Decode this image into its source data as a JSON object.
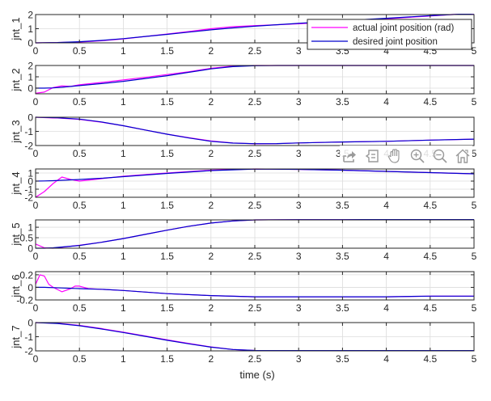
{
  "figure": {
    "xlabel": "time (s)",
    "legend": {
      "entries": [
        {
          "label": "actual joint position (rad)",
          "color": "#FF00FF"
        },
        {
          "label": "desired joint position",
          "color": "#0000CC"
        }
      ]
    },
    "toolbar": [
      {
        "name": "export-icon",
        "title": "Export"
      },
      {
        "name": "data-tips-icon",
        "title": "Data Tips"
      },
      {
        "name": "pan-icon",
        "title": "Pan"
      },
      {
        "name": "zoom-in-icon",
        "title": "Zoom In"
      },
      {
        "name": "zoom-out-icon",
        "title": "Zoom Out"
      },
      {
        "name": "home-icon",
        "title": "Restore View"
      }
    ]
  },
  "chart_data": [
    {
      "type": "line",
      "ylabel": "jnt_1",
      "xlabel": "",
      "xlim": [
        0,
        5
      ],
      "ylim": [
        0,
        2
      ],
      "yticks": [
        0,
        1,
        2
      ],
      "xticks": [
        0,
        0.5,
        1,
        1.5,
        2,
        2.5,
        3,
        3.5,
        4,
        4.5,
        5
      ],
      "grid": true,
      "legend_position": "northeast",
      "x": [
        0,
        0.25,
        0.5,
        0.75,
        1,
        1.25,
        1.5,
        1.75,
        2,
        2.25,
        2.5,
        2.75,
        3,
        3.25,
        3.5,
        3.75,
        4,
        4.25,
        4.5,
        4.75,
        5
      ],
      "series": [
        {
          "name": "actual joint position (rad)",
          "values": [
            0,
            0.02,
            0.06,
            0.15,
            0.28,
            0.45,
            0.62,
            0.8,
            1.0,
            1.14,
            1.22,
            1.28,
            1.35,
            1.42,
            1.52,
            1.6,
            1.7,
            1.8,
            1.9,
            2.0,
            2.08
          ]
        },
        {
          "name": "desired joint position",
          "values": [
            0,
            0.02,
            0.08,
            0.17,
            0.3,
            0.45,
            0.6,
            0.76,
            0.92,
            1.06,
            1.18,
            1.28,
            1.38,
            1.47,
            1.56,
            1.65,
            1.74,
            1.83,
            1.92,
            2.0,
            2.08
          ]
        }
      ]
    },
    {
      "type": "line",
      "ylabel": "jnt_2",
      "xlabel": "",
      "xlim": [
        0,
        5
      ],
      "ylim": [
        -0.5,
        2
      ],
      "yticks": [
        0,
        1,
        2
      ],
      "xticks": [
        0,
        0.5,
        1,
        1.5,
        2,
        2.5,
        3,
        3.5,
        4,
        4.5,
        5
      ],
      "grid": true,
      "x": [
        0,
        0.1,
        0.2,
        0.3,
        0.4,
        0.5,
        0.75,
        1,
        1.25,
        1.5,
        1.75,
        2,
        2.25,
        2.5,
        2.75,
        3,
        3.5,
        4,
        4.5,
        5
      ],
      "series": [
        {
          "name": "actual joint position (rad)",
          "values": [
            -0.45,
            -0.35,
            0.05,
            0.2,
            0.15,
            0.3,
            0.5,
            0.72,
            0.95,
            1.2,
            1.45,
            1.75,
            1.95,
            2.0,
            2.0,
            2.0,
            2.0,
            2.0,
            2.0,
            2.0
          ]
        },
        {
          "name": "desired joint position",
          "values": [
            0,
            0.0,
            0.02,
            0.08,
            0.15,
            0.22,
            0.4,
            0.6,
            0.85,
            1.1,
            1.4,
            1.7,
            1.9,
            1.98,
            2.0,
            2.0,
            2.0,
            2.0,
            2.0,
            2.0
          ]
        }
      ]
    },
    {
      "type": "line",
      "ylabel": "jnt_3",
      "xlabel": "",
      "xlim": [
        0,
        5
      ],
      "ylim": [
        -2,
        0
      ],
      "yticks": [
        -2,
        -1,
        0
      ],
      "xticks": [
        0,
        0.5,
        1,
        1.5,
        2,
        2.5,
        3,
        3.5,
        4,
        4.5,
        5
      ],
      "grid": true,
      "x": [
        0,
        0.2,
        0.25,
        0.5,
        0.75,
        1,
        1.25,
        1.5,
        1.75,
        2,
        2.25,
        2.5,
        2.75,
        3,
        3.25,
        3.5,
        4,
        4.5,
        5
      ],
      "series": [
        {
          "name": "actual joint position (rad)",
          "values": [
            0,
            -0.05,
            -0.05,
            -0.15,
            -0.35,
            -0.6,
            -0.9,
            -1.2,
            -1.45,
            -1.68,
            -1.82,
            -1.88,
            -1.87,
            -1.82,
            -1.78,
            -1.75,
            -1.7,
            -1.62,
            -1.55
          ]
        },
        {
          "name": "desired joint position",
          "values": [
            0,
            -0.03,
            -0.04,
            -0.13,
            -0.33,
            -0.6,
            -0.9,
            -1.2,
            -1.47,
            -1.7,
            -1.83,
            -1.87,
            -1.86,
            -1.82,
            -1.78,
            -1.75,
            -1.7,
            -1.62,
            -1.55
          ]
        }
      ]
    },
    {
      "type": "line",
      "ylabel": "jnt_4",
      "xlabel": "",
      "xlim": [
        0,
        5
      ],
      "ylim": [
        -2,
        1.5
      ],
      "yticks": [
        -2,
        -1,
        0,
        1
      ],
      "xticks": [
        0,
        0.5,
        1,
        1.5,
        2,
        2.5,
        3,
        3.5,
        4,
        4.5,
        5
      ],
      "grid": true,
      "x": [
        0,
        0.1,
        0.2,
        0.3,
        0.4,
        0.5,
        0.75,
        1,
        1.5,
        2,
        2.5,
        3,
        3.5,
        4,
        4.5,
        5
      ],
      "series": [
        {
          "name": "actual joint position (rad)",
          "values": [
            -2.0,
            -1.3,
            -0.3,
            0.5,
            0.2,
            0.0,
            0.3,
            0.6,
            1.0,
            1.35,
            1.5,
            1.45,
            1.35,
            1.2,
            1.05,
            0.9
          ]
        },
        {
          "name": "desired joint position",
          "values": [
            0,
            0.02,
            0.05,
            0.1,
            0.15,
            0.2,
            0.35,
            0.55,
            0.95,
            1.3,
            1.48,
            1.45,
            1.35,
            1.2,
            1.05,
            0.9
          ]
        }
      ]
    },
    {
      "type": "line",
      "ylabel": "jnt_5",
      "xlabel": "",
      "xlim": [
        0,
        5
      ],
      "ylim": [
        0,
        1.35
      ],
      "yticks": [
        0,
        0.5,
        1
      ],
      "xticks": [
        0,
        0.5,
        1,
        1.5,
        2,
        2.5,
        3,
        3.5,
        4,
        4.5,
        5
      ],
      "grid": true,
      "x": [
        0,
        0.1,
        0.2,
        0.5,
        0.75,
        1,
        1.25,
        1.5,
        1.75,
        2,
        2.25,
        2.5,
        3,
        3.5,
        4,
        4.5,
        5
      ],
      "series": [
        {
          "name": "actual joint position (rad)",
          "values": [
            0.2,
            0.02,
            0.0,
            0.14,
            0.28,
            0.46,
            0.66,
            0.86,
            1.05,
            1.2,
            1.3,
            1.35,
            1.36,
            1.36,
            1.37,
            1.37,
            1.38
          ]
        },
        {
          "name": "desired joint position",
          "values": [
            0,
            0.0,
            0.02,
            0.13,
            0.28,
            0.46,
            0.66,
            0.86,
            1.05,
            1.2,
            1.3,
            1.35,
            1.36,
            1.36,
            1.37,
            1.37,
            1.38
          ]
        }
      ]
    },
    {
      "type": "line",
      "ylabel": "jnt_6",
      "xlabel": "",
      "xlim": [
        0,
        5
      ],
      "ylim": [
        -0.2,
        0.25
      ],
      "yticks": [
        -0.2,
        0,
        0.2
      ],
      "xticks": [
        0,
        0.5,
        1,
        1.5,
        2,
        2.5,
        3,
        3.5,
        4,
        4.5,
        5
      ],
      "grid": true,
      "x": [
        0,
        0.05,
        0.1,
        0.15,
        0.2,
        0.3,
        0.4,
        0.45,
        0.5,
        0.6,
        0.75,
        1,
        1.5,
        2,
        2.5,
        3,
        3.5,
        4,
        4.5,
        5
      ],
      "series": [
        {
          "name": "actual joint position (rad)",
          "values": [
            0.05,
            0.2,
            0.18,
            0.05,
            0.0,
            -0.07,
            -0.02,
            0.02,
            0.02,
            -0.02,
            -0.03,
            -0.05,
            -0.1,
            -0.13,
            -0.15,
            -0.15,
            -0.15,
            -0.15,
            -0.14,
            -0.14
          ]
        },
        {
          "name": "desired joint position",
          "values": [
            0,
            0,
            0,
            -0.002,
            -0.005,
            -0.01,
            -0.015,
            -0.018,
            -0.02,
            -0.025,
            -0.03,
            -0.05,
            -0.1,
            -0.13,
            -0.15,
            -0.15,
            -0.15,
            -0.15,
            -0.14,
            -0.14
          ]
        }
      ]
    },
    {
      "type": "line",
      "ylabel": "jnt_7",
      "xlabel": "time (s)",
      "xlim": [
        0,
        5
      ],
      "ylim": [
        -2,
        0
      ],
      "yticks": [
        -2,
        -1,
        0
      ],
      "xticks": [
        0,
        0.5,
        1,
        1.5,
        2,
        2.5,
        3,
        3.5,
        4,
        4.5,
        5
      ],
      "grid": true,
      "x": [
        0,
        0.25,
        0.5,
        0.75,
        1,
        1.25,
        1.5,
        1.75,
        2,
        2.25,
        2.5,
        3,
        3.5,
        4,
        4.5,
        5
      ],
      "series": [
        {
          "name": "actual joint position (rad)",
          "values": [
            0,
            -0.05,
            -0.2,
            -0.42,
            -0.68,
            -0.95,
            -1.22,
            -1.48,
            -1.72,
            -1.9,
            -1.97,
            -1.98,
            -1.98,
            -1.98,
            -1.98,
            -1.98
          ]
        },
        {
          "name": "desired joint position",
          "values": [
            0,
            -0.06,
            -0.22,
            -0.45,
            -0.7,
            -0.97,
            -1.25,
            -1.5,
            -1.74,
            -1.9,
            -1.97,
            -1.98,
            -1.98,
            -1.98,
            -1.98,
            -1.98
          ]
        }
      ]
    }
  ]
}
